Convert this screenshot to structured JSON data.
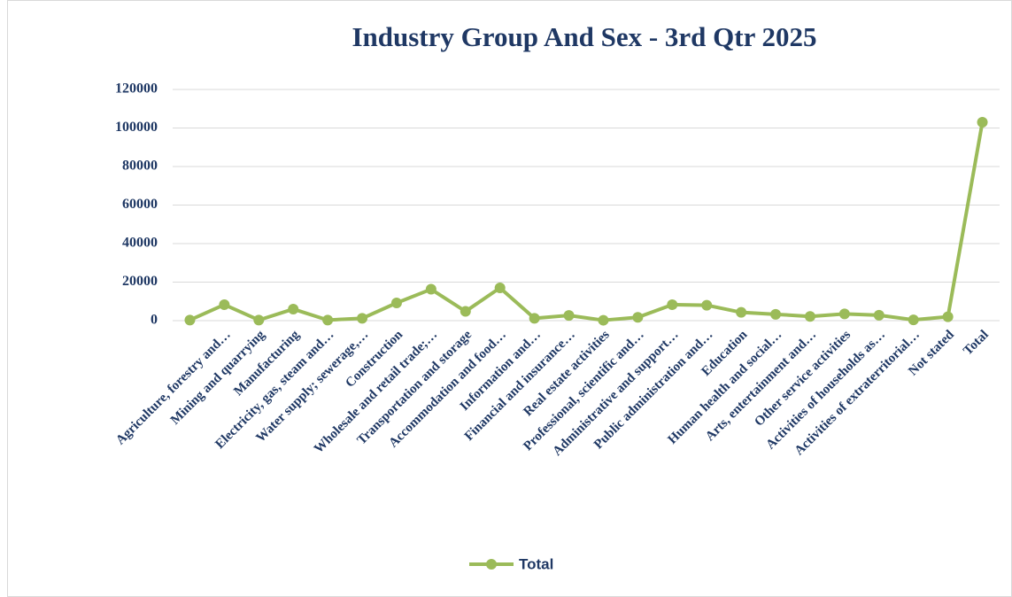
{
  "chart_data": {
    "type": "line",
    "title": "Industry Group  And Sex -   3rd Qtr 2025",
    "categories": [
      null,
      "Agriculture, forestry and…",
      "Mining and quarrying",
      "Manufacturing",
      "Electricity, gas, steam and…",
      "Water supply; sewerage,…",
      "Construction",
      "Wholesale and retail trade;…",
      "Transportation and storage",
      "Accommodation and food…",
      "Information and…",
      "Financial and insurance…",
      "Real estate activities",
      "Professional, scientific and…",
      "Administrative and support…",
      "Public administration and…",
      "Education",
      "Human health and social…",
      "Arts, entertainment and…",
      "Other service activities",
      "Activities of households as…",
      "Activities of extraterritorial…",
      "Not stated",
      "Total"
    ],
    "series": [
      {
        "name": "Total",
        "color": "#9bbb59",
        "values": [
          300,
          8300,
          300,
          6000,
          300,
          1200,
          9200,
          16300,
          4800,
          17000,
          1200,
          2700,
          200,
          1700,
          8300,
          8000,
          4300,
          3300,
          2200,
          3500,
          2800,
          400,
          2000,
          103000
        ]
      }
    ],
    "ylim": [
      0,
      120000
    ],
    "yticks": [
      0,
      20000,
      40000,
      60000,
      80000,
      100000,
      120000
    ],
    "grid": true,
    "legend": "bottom"
  }
}
